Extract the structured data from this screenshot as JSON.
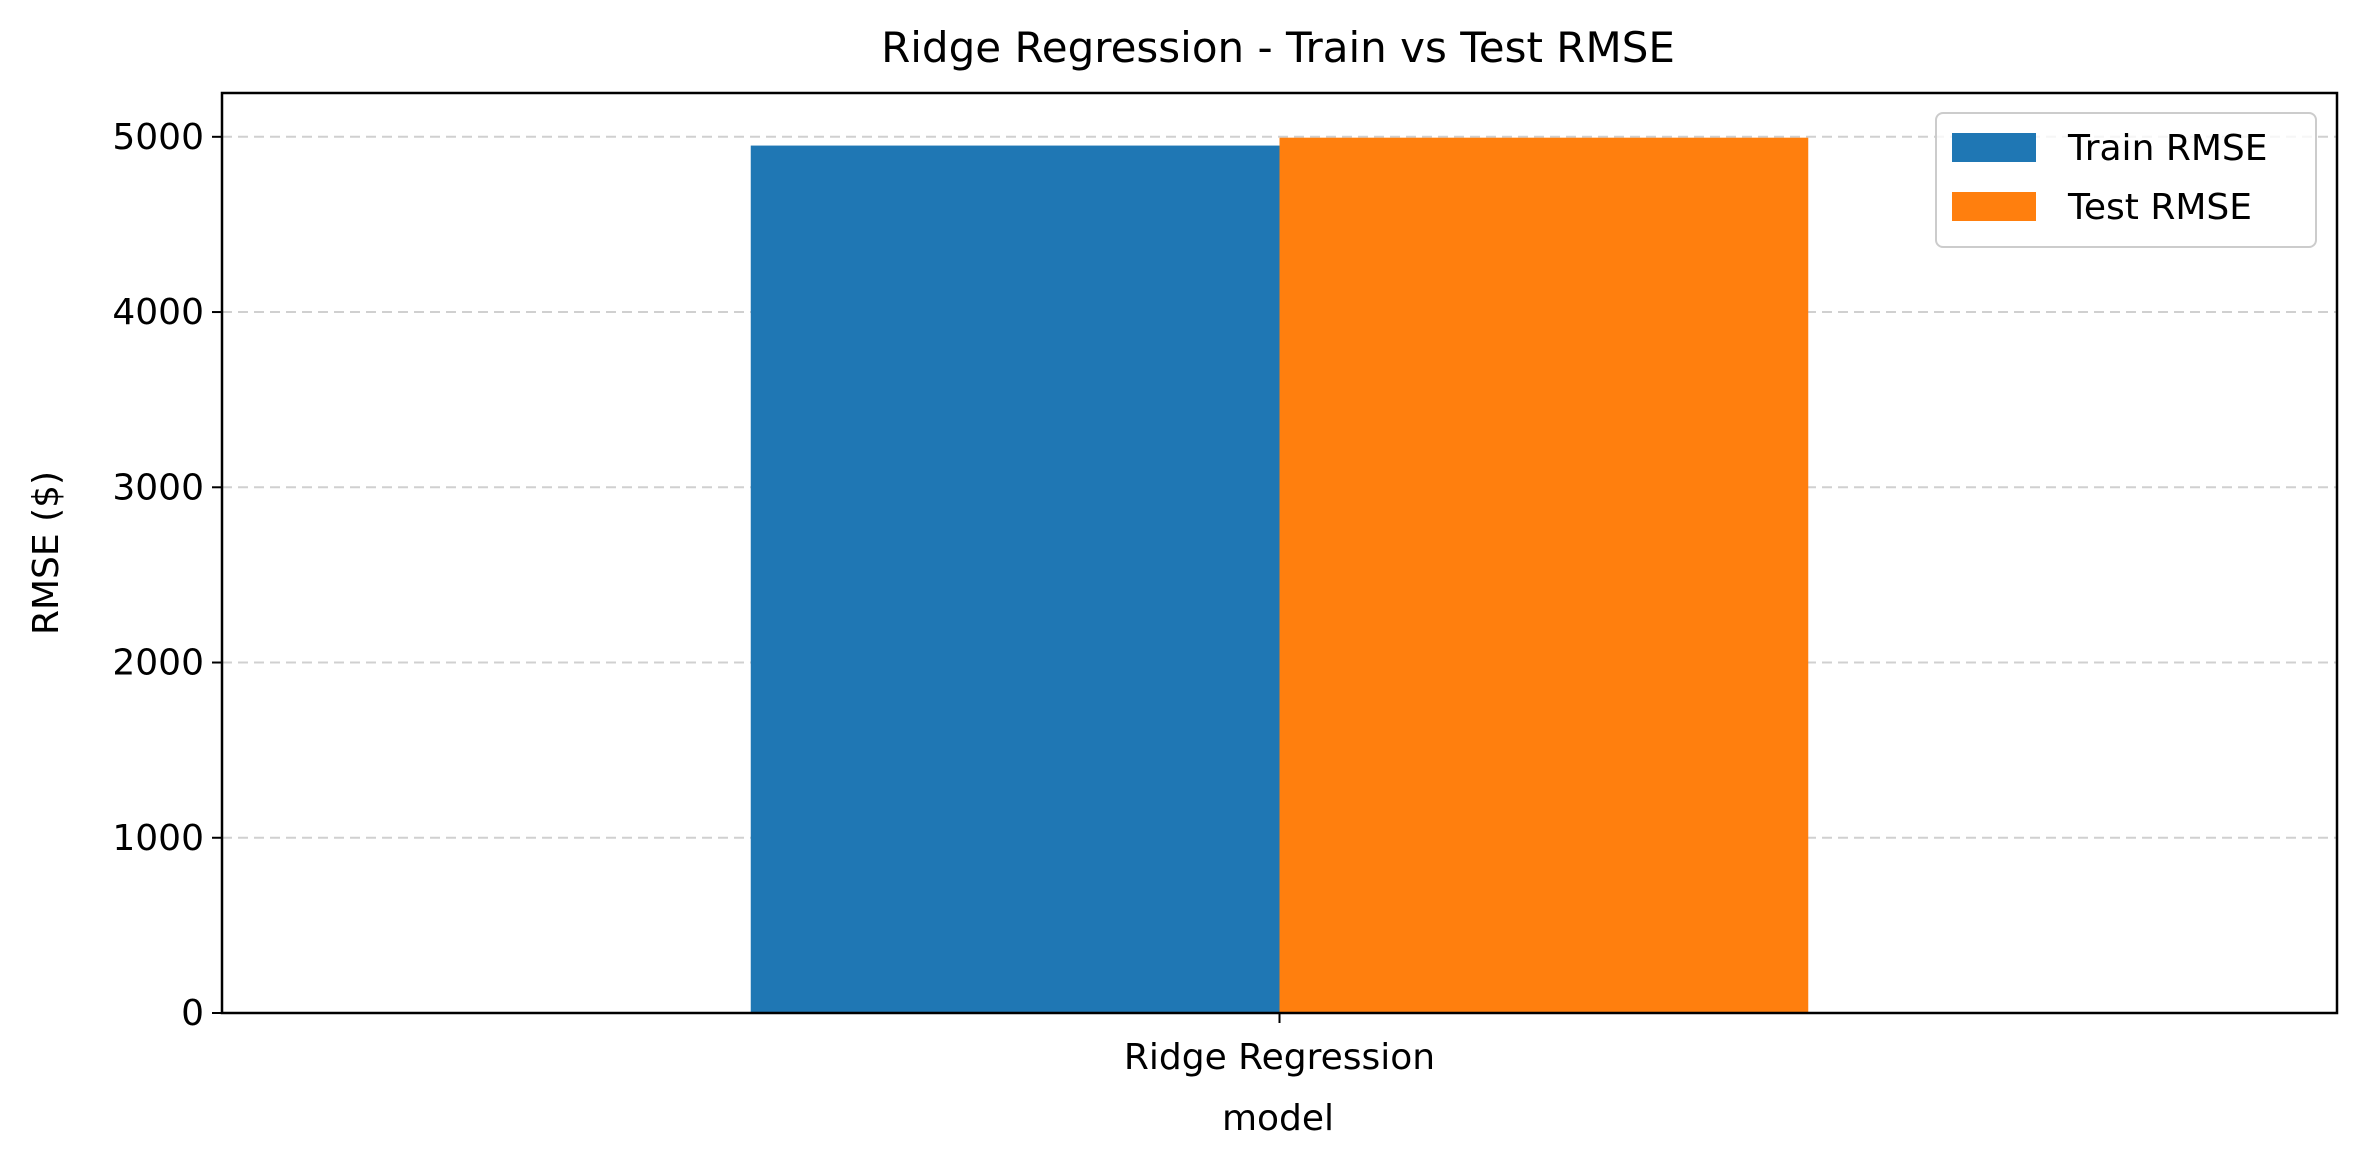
{
  "chart_data": {
    "type": "bar",
    "title": "Ridge Regression - Train vs Test RMSE",
    "xlabel": "model",
    "ylabel": "RMSE ($)",
    "categories": [
      "Ridge Regression"
    ],
    "series": [
      {
        "name": "Train RMSE",
        "values": [
          4950
        ],
        "color": "#1f77b4"
      },
      {
        "name": "Test RMSE",
        "values": [
          4995
        ],
        "color": "#ff7f0e"
      }
    ],
    "ylim": [
      0,
      5250
    ],
    "yticks": [
      0,
      1000,
      2000,
      3000,
      4000,
      5000
    ],
    "y_grid": true,
    "grid_style": "dashed",
    "legend_position": "top-right"
  }
}
